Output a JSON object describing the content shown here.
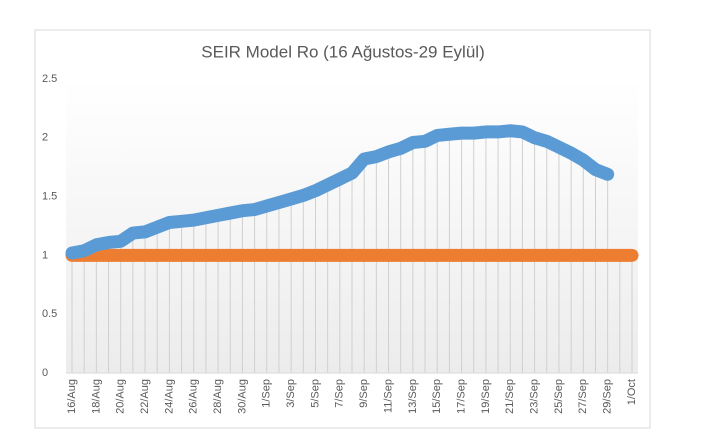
{
  "chart_data": {
    "type": "line",
    "title": "SEIR Model Ro (16 Ağustos-29 Eylül)",
    "categories": [
      "16/Aug",
      null,
      "18/Aug",
      null,
      "20/Aug",
      null,
      "22/Aug",
      null,
      "24/Aug",
      null,
      "26/Aug",
      null,
      "28/Aug",
      null,
      "30/Aug",
      null,
      "1/Sep",
      null,
      "3/Sep",
      null,
      "5/Sep",
      null,
      "7/Sep",
      null,
      "9/Sep",
      null,
      "11/Sep",
      null,
      "13/Sep",
      null,
      "15/Sep",
      null,
      "17/Sep",
      null,
      "19/Sep",
      null,
      "21/Sep",
      null,
      "23/Sep",
      null,
      "25/Sep",
      null,
      "27/Sep",
      null,
      "29/Sep",
      null,
      "1/Oct"
    ],
    "series": [
      {
        "color": "#5b9bd5",
        "values": [
          1.02,
          1.04,
          1.09,
          1.11,
          1.12,
          1.19,
          1.2,
          1.24,
          1.28,
          1.29,
          1.3,
          1.32,
          1.34,
          1.36,
          1.38,
          1.39,
          1.42,
          1.45,
          1.48,
          1.51,
          1.55,
          1.6,
          1.65,
          1.7,
          1.82,
          1.84,
          1.88,
          1.91,
          1.96,
          1.97,
          2.02,
          2.03,
          2.04,
          2.04,
          2.05,
          2.05,
          2.06,
          2.05,
          2.0,
          1.97,
          1.92,
          1.87,
          1.81,
          1.73,
          1.69,
          null,
          null
        ]
      },
      {
        "color": "#ed7d31",
        "values": [
          1,
          1,
          1,
          1,
          1,
          1,
          1,
          1,
          1,
          1,
          1,
          1,
          1,
          1,
          1,
          1,
          1,
          1,
          1,
          1,
          1,
          1,
          1,
          1,
          1,
          1,
          1,
          1,
          1,
          1,
          1,
          1,
          1,
          1,
          1,
          1,
          1,
          1,
          1,
          1,
          1,
          1,
          1,
          1,
          1,
          1,
          1
        ]
      }
    ],
    "ylim": [
      0,
      2.5
    ],
    "yticks": [
      0,
      0.5,
      1,
      1.5,
      2,
      2.5
    ],
    "drop_lines": true
  }
}
